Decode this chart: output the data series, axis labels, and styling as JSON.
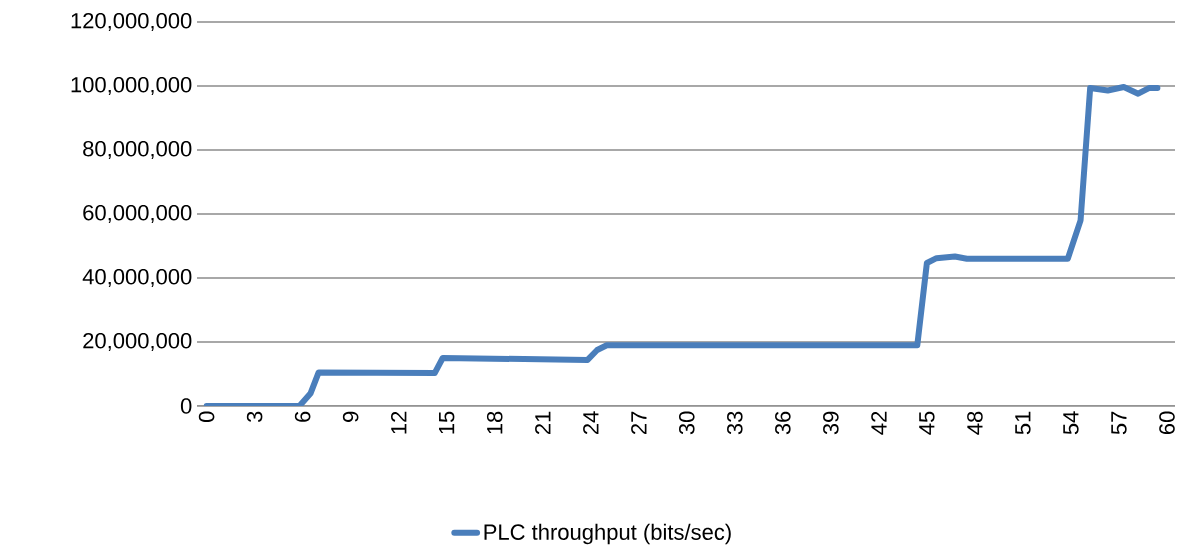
{
  "chart_data": {
    "type": "line",
    "x": [
      0,
      5.8,
      6.5,
      7,
      14.25,
      14.75,
      23.8,
      24.4,
      25,
      44.4,
      45,
      45.6,
      46.75,
      47.5,
      53.8,
      54.6,
      55.2,
      56.3,
      57.3,
      58.2,
      58.9,
      59.4
    ],
    "series": [
      {
        "name": "PLC throughput (bits/sec)",
        "color": "#4a7ebb",
        "values": [
          0,
          0,
          4000000,
          10500000,
          10300000,
          15000000,
          14400000,
          17500000,
          19000000,
          19000000,
          44700000,
          46200000,
          46700000,
          46000000,
          46000000,
          58000000,
          99400000,
          98600000,
          99700000,
          97600000,
          99400000,
          99400000
        ]
      }
    ],
    "xlim": [
      -0.6,
      60.5
    ],
    "xticks": [
      0,
      3,
      6,
      9,
      12,
      15,
      18,
      21,
      24,
      27,
      30,
      33,
      36,
      39,
      42,
      45,
      48,
      51,
      54,
      57,
      60
    ],
    "ylim": [
      0,
      120000000
    ],
    "yticks": [
      {
        "value": 0,
        "label": "0"
      },
      {
        "value": 20000000,
        "label": "20,000,000"
      },
      {
        "value": 40000000,
        "label": "40,000,000"
      },
      {
        "value": 60000000,
        "label": "60,000,000"
      },
      {
        "value": 80000000,
        "label": "80,000,000"
      },
      {
        "value": 100000000,
        "label": "100,000,000"
      },
      {
        "value": 120000000,
        "label": "120,000,000"
      }
    ],
    "grid": "y",
    "legend": "bottom",
    "marker": "none",
    "line_style": "solid"
  }
}
